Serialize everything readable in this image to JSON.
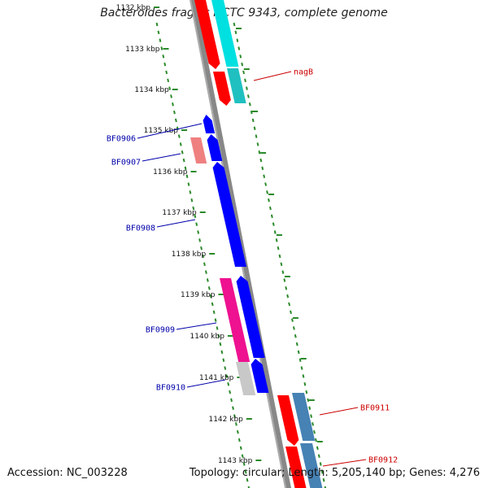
{
  "title": "Bacteroides fragilis NCTC 9343, complete genome",
  "accession": "Accession: NC_003228",
  "summary": "Topology: circular; Length: 5,205,140 bp; Genes: 4,276",
  "ticks": [
    "1132 kbp",
    "1133 kbp",
    "1134 kbp",
    "1135 kbp",
    "1136 kbp",
    "1137 kbp",
    "1138 kbp",
    "1139 kbp",
    "1140 kbp",
    "1141 kbp",
    "1142 kbp",
    "1143 kbp"
  ],
  "genes": [
    {
      "name": "nagB",
      "color": "#cc0000"
    },
    {
      "name": "BF0906",
      "color": "#0000aa"
    },
    {
      "name": "BF0907",
      "color": "#0000aa"
    },
    {
      "name": "BF0908",
      "color": "#0000aa"
    },
    {
      "name": "BF0909",
      "color": "#0000aa"
    },
    {
      "name": "BF0910",
      "color": "#0000aa"
    },
    {
      "name": "BF0911",
      "color": "#cc0000"
    },
    {
      "name": "BF0912",
      "color": "#cc0000"
    }
  ],
  "colors": {
    "backbone": "#888888",
    "tick_dots": "#2a8a2a",
    "feature_red": "#ff0000",
    "feature_cyan": "#00e0e0",
    "feature_blue": "#0000ff",
    "feature_pink": "#ef8080",
    "feature_magenta": "#ee1190",
    "feature_gray": "#c8c8c8",
    "feature_steel": "#4682b4"
  }
}
